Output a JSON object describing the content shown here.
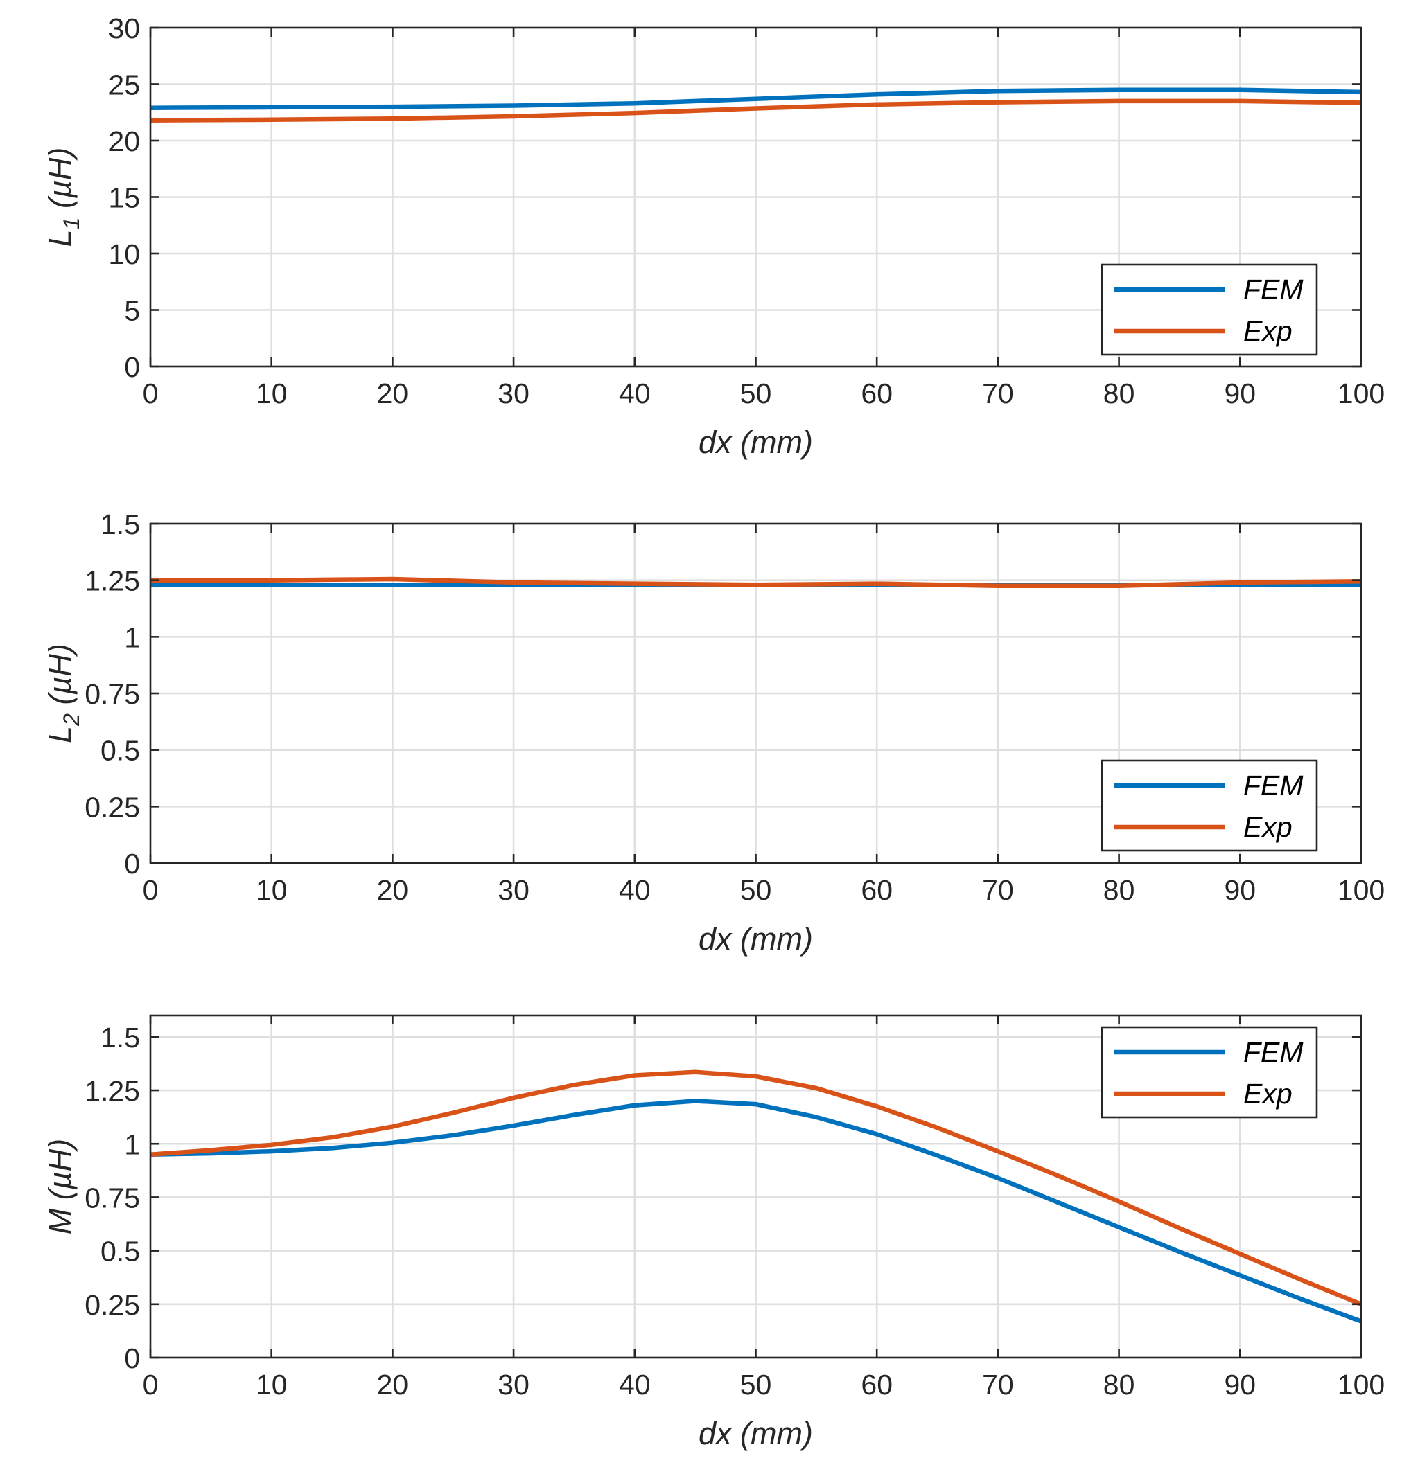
{
  "chart_data": [
    {
      "type": "line",
      "xlabel": "dx (mm)",
      "ylabel": {
        "main": "L",
        "sub": "1",
        "rest": " (µH)"
      },
      "xlim": [
        0,
        100
      ],
      "ylim": [
        0,
        30
      ],
      "xticks": [
        0,
        10,
        20,
        30,
        40,
        50,
        60,
        70,
        80,
        90,
        100
      ],
      "yticks": [
        0,
        5,
        10,
        15,
        20,
        25,
        30
      ],
      "ytick_labels": [
        "0",
        "5",
        "10",
        "15",
        "20",
        "25",
        "30"
      ],
      "grid": true,
      "legend_position": "bottom-right",
      "x": [
        0,
        10,
        20,
        30,
        40,
        50,
        60,
        70,
        80,
        90,
        100
      ],
      "series": [
        {
          "name": "FEM",
          "color": "#0072bd",
          "values": [
            22.9,
            22.95,
            23.0,
            23.1,
            23.3,
            23.7,
            24.1,
            24.4,
            24.5,
            24.5,
            24.3
          ]
        },
        {
          "name": "Exp",
          "color": "#d95319",
          "values": [
            21.8,
            21.85,
            21.95,
            22.15,
            22.45,
            22.85,
            23.2,
            23.4,
            23.5,
            23.5,
            23.35
          ]
        }
      ]
    },
    {
      "type": "line",
      "xlabel": "dx (mm)",
      "ylabel": {
        "main": "L",
        "sub": "2",
        "rest": " (µH)"
      },
      "xlim": [
        0,
        100
      ],
      "ylim": [
        0,
        1.5
      ],
      "xticks": [
        0,
        10,
        20,
        30,
        40,
        50,
        60,
        70,
        80,
        90,
        100
      ],
      "yticks": [
        0,
        0.25,
        0.5,
        0.75,
        1,
        1.25,
        1.5
      ],
      "ytick_labels": [
        "0",
        "0.25",
        "0.5",
        "0.75",
        "1",
        "1.25",
        "1.5"
      ],
      "grid": true,
      "legend_position": "bottom-right",
      "x": [
        0,
        10,
        20,
        30,
        40,
        50,
        60,
        70,
        80,
        90,
        100
      ],
      "series": [
        {
          "name": "FEM",
          "color": "#0072bd",
          "values": [
            1.23,
            1.23,
            1.23,
            1.23,
            1.23,
            1.23,
            1.23,
            1.23,
            1.23,
            1.23,
            1.23
          ]
        },
        {
          "name": "Exp",
          "color": "#d95319",
          "values": [
            1.25,
            1.25,
            1.255,
            1.24,
            1.235,
            1.23,
            1.235,
            1.225,
            1.225,
            1.24,
            1.245
          ]
        }
      ]
    },
    {
      "type": "line",
      "xlabel": "dx (mm)",
      "ylabel": {
        "main": "M",
        "sub": "",
        "rest": " (µH)"
      },
      "xlim": [
        0,
        100
      ],
      "ylim": [
        0,
        1.6
      ],
      "xticks": [
        0,
        10,
        20,
        30,
        40,
        50,
        60,
        70,
        80,
        90,
        100
      ],
      "yticks": [
        0,
        0.25,
        0.5,
        0.75,
        1,
        1.25,
        1.5
      ],
      "ytick_labels": [
        "0",
        "0.25",
        "0.5",
        "0.75",
        "1",
        "1.25",
        "1.5"
      ],
      "grid": true,
      "legend_position": "top-right",
      "x": [
        0,
        5,
        10,
        15,
        20,
        25,
        30,
        35,
        40,
        45,
        50,
        55,
        60,
        65,
        70,
        75,
        80,
        85,
        90,
        95,
        100
      ],
      "series": [
        {
          "name": "FEM",
          "color": "#0072bd",
          "values": [
            0.95,
            0.955,
            0.965,
            0.98,
            1.005,
            1.04,
            1.085,
            1.135,
            1.18,
            1.2,
            1.185,
            1.125,
            1.045,
            0.945,
            0.84,
            0.725,
            0.61,
            0.495,
            0.385,
            0.275,
            0.17
          ]
        },
        {
          "name": "Exp",
          "color": "#d95319",
          "values": [
            0.95,
            0.97,
            0.995,
            1.03,
            1.08,
            1.145,
            1.215,
            1.275,
            1.32,
            1.335,
            1.315,
            1.26,
            1.175,
            1.075,
            0.965,
            0.85,
            0.73,
            0.605,
            0.485,
            0.365,
            0.25
          ]
        }
      ]
    }
  ]
}
